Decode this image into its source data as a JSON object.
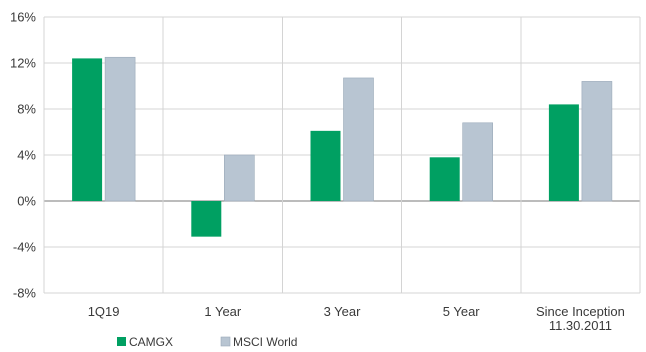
{
  "chart_data": {
    "type": "bar",
    "categories": [
      "1Q19",
      "1 Year",
      "3 Year",
      "5 Year",
      "Since Inception\n11.30.2011"
    ],
    "series": [
      {
        "name": "CAMGX",
        "values": [
          12.4,
          -3.1,
          6.1,
          3.8,
          8.4
        ],
        "color": "#00a062"
      },
      {
        "name": "MSCI World",
        "values": [
          12.5,
          4.0,
          10.7,
          6.8,
          10.4
        ],
        "color": "#b8c5d2"
      }
    ],
    "ylim": [
      -8,
      16
    ],
    "yticks": [
      16,
      12,
      8,
      4,
      0,
      -4,
      -8
    ],
    "ytick_labels": [
      "16%",
      "12%",
      "8%",
      "4%",
      "0%",
      "-4%",
      "-8%"
    ],
    "grid": true,
    "legend_position": "bottom-left",
    "title": "",
    "xlabel": "",
    "ylabel": ""
  }
}
